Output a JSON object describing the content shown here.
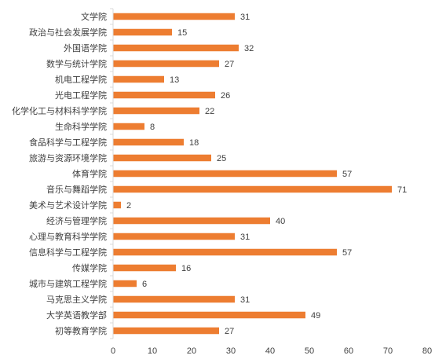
{
  "chart_data": {
    "type": "bar",
    "orientation": "horizontal",
    "title": "",
    "xlabel": "",
    "ylabel": "",
    "xlim": [
      0,
      80
    ],
    "xticks": [
      0,
      10,
      20,
      30,
      40,
      50,
      60,
      70,
      80
    ],
    "grid": false,
    "legend": "none",
    "bar_color": "#ED7D31",
    "categories": [
      "文学院",
      "政治与社会发展学院",
      "外国语学院",
      "数学与统计学院",
      "机电工程学院",
      "光电工程学院",
      "化学化工与材料科学学院",
      "生命科学学院",
      "食品科学与工程学院",
      "旅游与资源环境学院",
      "体育学院",
      "音乐与舞蹈学院",
      "美术与艺术设计学院",
      "经济与管理学院",
      "心理与教育科学学院",
      "信息科学与工程学院",
      "传媒学院",
      "城市与建筑工程学院",
      "马克思主义学院",
      "大学英语教学部",
      "初等教育学院"
    ],
    "values": [
      31,
      15,
      32,
      27,
      13,
      26,
      22,
      8,
      18,
      25,
      57,
      71,
      2,
      40,
      31,
      57,
      16,
      6,
      31,
      49,
      27
    ]
  }
}
